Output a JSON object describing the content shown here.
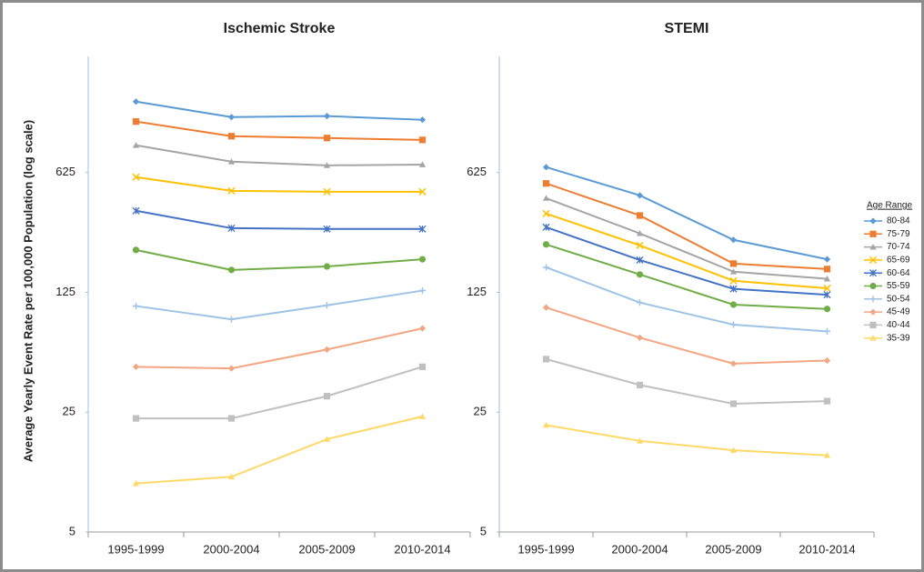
{
  "y_label": "Average Yearly Event Rate per 100,000 Population (log scale)",
  "legend": {
    "title": "Age Range",
    "position": "right",
    "entries": [
      {
        "name": "80-84",
        "color": "#5b9bd5",
        "marker": "diamond"
      },
      {
        "name": "75-79",
        "color": "#ed7d31",
        "marker": "square"
      },
      {
        "name": "70-74",
        "color": "#a5a5a5",
        "marker": "triangle"
      },
      {
        "name": "65-69",
        "color": "#ffc000",
        "marker": "x"
      },
      {
        "name": "60-64",
        "color": "#4472c4",
        "marker": "star"
      },
      {
        "name": "55-59",
        "color": "#70ad47",
        "marker": "circle"
      },
      {
        "name": "50-54",
        "color": "#9dc3e6",
        "marker": "plus"
      },
      {
        "name": "45-49",
        "color": "#f4a582",
        "marker": "diamond"
      },
      {
        "name": "40-44",
        "color": "#c0c0c0",
        "marker": "square"
      },
      {
        "name": "35-39",
        "color": "#ffd966",
        "marker": "triangle"
      }
    ]
  },
  "chart_data": [
    {
      "type": "line",
      "title": "Ischemic Stroke",
      "log_scale": true,
      "categories": [
        "1995-1999",
        "2000-2004",
        "2005-2009",
        "2010-2014"
      ],
      "ylim": [
        5,
        3125
      ],
      "yticks": [
        5,
        25,
        125,
        625
      ],
      "series": [
        {
          "values": [
            1620,
            1316,
            1335,
            1270
          ]
        },
        {
          "values": [
            1240,
            1019,
            994,
            969
          ]
        },
        {
          "values": [
            902,
            724,
            688,
            696
          ]
        },
        {
          "values": [
            588,
            489,
            483,
            483
          ]
        },
        {
          "values": [
            374,
            296,
            293,
            293
          ]
        },
        {
          "values": [
            221,
            169,
            177,
            195
          ]
        },
        {
          "values": [
            104,
            87,
            105,
            128
          ]
        },
        {
          "values": [
            46,
            45,
            58,
            77
          ]
        },
        {
          "values": [
            23,
            23,
            31,
            46
          ]
        },
        {
          "values": [
            9.6,
            10.5,
            17.4,
            23.6
          ]
        }
      ]
    },
    {
      "type": "line",
      "title": "STEMI",
      "log_scale": true,
      "categories": [
        "1995-1999",
        "2000-2004",
        "2005-2009",
        "2010-2014"
      ],
      "ylim": [
        5,
        3125
      ],
      "yticks": [
        5,
        25,
        125,
        625
      ],
      "series": [
        {
          "values": [
            672,
            460,
            253,
            195
          ]
        },
        {
          "values": [
            540,
            351,
            184,
            171
          ]
        },
        {
          "values": [
            443,
            276,
            165,
            150
          ]
        },
        {
          "values": [
            360,
            235,
            146,
            132
          ]
        },
        {
          "values": [
            300,
            193,
            131,
            121
          ]
        },
        {
          "values": [
            238,
            159,
            106,
            100
          ]
        },
        {
          "values": [
            175,
            109,
            81,
            74
          ]
        },
        {
          "values": [
            102,
            68,
            48,
            50
          ]
        },
        {
          "values": [
            51,
            36,
            28,
            29
          ]
        },
        {
          "values": [
            21,
            17,
            15,
            14
          ]
        }
      ]
    }
  ]
}
